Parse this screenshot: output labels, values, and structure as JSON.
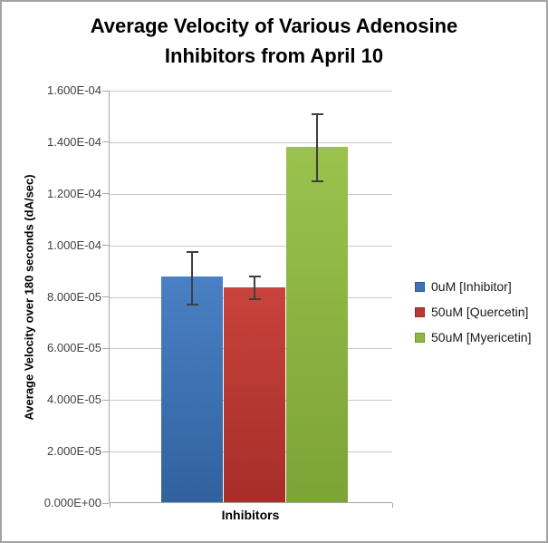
{
  "frame": {
    "background": "#ffffff",
    "border_color": "#a3a3a3"
  },
  "title": {
    "lines": [
      "Average Velocity of Various Adenosine",
      "Inhibitors from April 10"
    ]
  },
  "y_axis": {
    "label": "Average Velocity over 180 seconds (dA/sec)",
    "tick_labels": [
      "1.600E-04",
      "1.400E-04",
      "1.200E-04",
      "1.000E-04",
      "8.000E-05",
      "6.000E-05",
      "4.000E-05",
      "2.000E-05",
      "0.000E+00"
    ]
  },
  "x_axis": {
    "label": "Inhibitors"
  },
  "legend": {
    "items": [
      {
        "label": "0uM [Inhibitor]",
        "color": "#3b72b8",
        "border": "#2c5a95"
      },
      {
        "label": "50uM [Quercetin]",
        "color": "#bd3834",
        "border": "#962b27"
      },
      {
        "label": "50uM [Myericetin]",
        "color": "#8eb743",
        "border": "#719434"
      }
    ]
  },
  "colors": {
    "gridline": "#c9c9c9",
    "axis_line": "#a6a6a6",
    "error_bar": "#3f3f3f"
  },
  "chart_data": {
    "type": "bar",
    "title": "Average Velocity of Various Adenosine Inhibitors from April 10",
    "xlabel": "Inhibitors",
    "ylabel": "Average Velocity over 180 seconds (dA/sec)",
    "categories": [
      "Inhibitors"
    ],
    "series": [
      {
        "name": "0uM [Inhibitor]",
        "value": 8.75e-05,
        "error_low": 7.7e-05,
        "error_high": 9.75e-05,
        "color": "#3b72b8",
        "gradient": [
          "#4a80c4",
          "#31629e"
        ]
      },
      {
        "name": "50uM [Quercetin]",
        "value": 8.35e-05,
        "error_low": 7.9e-05,
        "error_high": 8.8e-05,
        "color": "#bd3834",
        "gradient": [
          "#c8433c",
          "#a72d29"
        ]
      },
      {
        "name": "50uM [Myericetin]",
        "value": 0.000138,
        "error_low": 0.000125,
        "error_high": 0.000151,
        "color": "#8eb743",
        "gradient": [
          "#9ac24d",
          "#7ca336"
        ]
      }
    ],
    "ylim": [
      0,
      0.00016
    ],
    "y_tick_step": 2e-05,
    "grid": true,
    "legend_position": "right",
    "error_bars": true
  }
}
